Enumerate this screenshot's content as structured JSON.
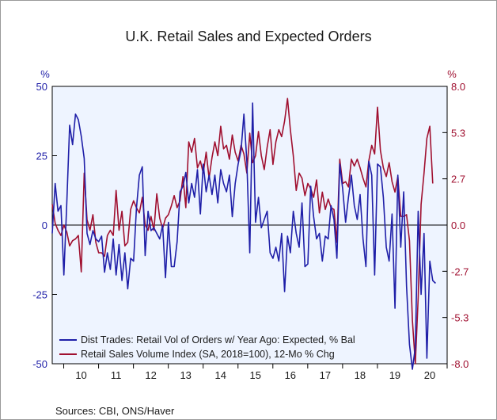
{
  "chart_data": {
    "type": "line",
    "title": "U.K. Retail Sales and Expected Orders",
    "left_axis": {
      "unit": "%",
      "ticks": [
        50,
        25,
        0,
        -25,
        -50
      ],
      "tick_labels": [
        "50",
        "25",
        "0",
        "-25",
        "-50"
      ],
      "range": [
        -50,
        50
      ],
      "color": "#1f1fa8"
    },
    "right_axis": {
      "unit": "%",
      "ticks": [
        8.0,
        5.333,
        2.667,
        0.0,
        -2.667,
        -5.333,
        -8.0
      ],
      "tick_labels": [
        "8.0",
        "5.3",
        "2.7",
        "0.0",
        "-2.7",
        "-5.3",
        "-8.0"
      ],
      "range": [
        -8,
        8
      ],
      "color": "#a01030"
    },
    "x_axis": {
      "labels": [
        "10",
        "11",
        "12",
        "13",
        "14",
        "15",
        "16",
        "17",
        "18",
        "19",
        "20"
      ],
      "start_year": 2010,
      "range": [
        2009.67,
        2021.0
      ]
    },
    "grid": false,
    "legend_position": "bottom-left",
    "series": [
      {
        "name": "Dist Trades: Retail Vol of Orders w/ Year Ago: Expected, % Bal",
        "axis": "left",
        "color": "#1f1fa8",
        "x_start": 2009.67,
        "x_step": 0.08333,
        "values": [
          -3,
          15,
          5,
          7,
          -18,
          8,
          36,
          29,
          40,
          38,
          32,
          24,
          -3,
          -7,
          -2,
          -5,
          -6,
          -4,
          -17,
          -10,
          -16,
          -5,
          -18,
          -7,
          -20,
          -10,
          -23,
          -12,
          -13,
          6,
          18,
          21,
          -11,
          5,
          -2,
          -1,
          -3,
          -5,
          0,
          -19,
          1,
          -15,
          -15,
          -6,
          12,
          14,
          19,
          8,
          15,
          10,
          20,
          4,
          22,
          12,
          18,
          11,
          18,
          8,
          20,
          15,
          12,
          18,
          3,
          15,
          22,
          27,
          40,
          23,
          -10,
          44,
          1,
          10,
          -1,
          2,
          5,
          -10,
          -12,
          -8,
          -13,
          -3,
          -24,
          -4,
          -10,
          5,
          -3,
          -8,
          8,
          -15,
          -14,
          14,
          3,
          -5,
          -3,
          -13,
          -4,
          -5,
          7,
          2,
          -12,
          22,
          13,
          1,
          10,
          18,
          7,
          2,
          11,
          -5,
          -15,
          23,
          18,
          -18,
          22,
          21,
          10,
          -8,
          -13,
          4,
          -30,
          18,
          -8,
          12,
          -22,
          -43,
          -52,
          -44,
          5,
          -25,
          -3,
          -48,
          -13,
          -20,
          -21
        ],
        "note": "values read from chart (approximate)"
      },
      {
        "name": "Retail Sales Volume Index (SA, 2018=100), 12-Mo % Chg",
        "axis": "right",
        "color": "#a01030",
        "x_start": 2009.67,
        "x_step": 0.08333,
        "values": [
          1.2,
          0.1,
          -0.3,
          -0.6,
          0.0,
          -0.4,
          -1.2,
          -0.9,
          -0.8,
          -0.6,
          -2.7,
          3.0,
          0.3,
          -0.3,
          0.6,
          -1.0,
          -1.6,
          -1.6,
          -1.8,
          -0.6,
          -0.3,
          -0.6,
          2.0,
          -0.3,
          0.8,
          -1.2,
          -1.0,
          0.9,
          1.4,
          1.0,
          0.7,
          1.6,
          0.0,
          -0.3,
          0.5,
          -0.3,
          1.8,
          0.4,
          -0.2,
          0.4,
          0.6,
          1.1,
          1.7,
          1.0,
          1.4,
          2.8,
          1.0,
          4.8,
          4.2,
          5.0,
          3.3,
          3.7,
          3.0,
          4.2,
          2.7,
          3.9,
          4.8,
          4.0,
          5.7,
          4.4,
          4.6,
          3.8,
          5.2,
          4.2,
          3.7,
          4.6,
          4.1,
          3.0,
          5.3,
          3.6,
          4.0,
          5.4,
          4.0,
          3.2,
          4.5,
          5.5,
          3.5,
          4.8,
          5.5,
          5.1,
          6.0,
          7.3,
          5.5,
          4.0,
          2.0,
          3.0,
          2.7,
          1.7,
          2.4,
          2.1,
          1.6,
          2.6,
          0.7,
          1.9,
          0.9,
          1.5,
          1.0,
          0.9,
          -1.0,
          3.8,
          2.4,
          2.5,
          2.2,
          3.8,
          3.4,
          3.8,
          3.3,
          2.7,
          2.2,
          3.7,
          4.6,
          4.1,
          6.8,
          4.3,
          3.3,
          2.8,
          3.6,
          2.5,
          1.9,
          2.8,
          0.5,
          0.5,
          0.6,
          -0.9,
          -5.5,
          -8.0,
          -4.2,
          1.2,
          3.0,
          5.0,
          5.7,
          2.4
        ],
        "note": "values read from chart (approximate)"
      }
    ]
  },
  "legend": [
    "Dist Trades: Retail Vol of Orders w/ Year Ago: Expected, % Bal",
    "Retail Sales Volume Index (SA, 2018=100), 12-Mo % Chg"
  ],
  "source": "Sources:  CBI, ONS/Haver"
}
